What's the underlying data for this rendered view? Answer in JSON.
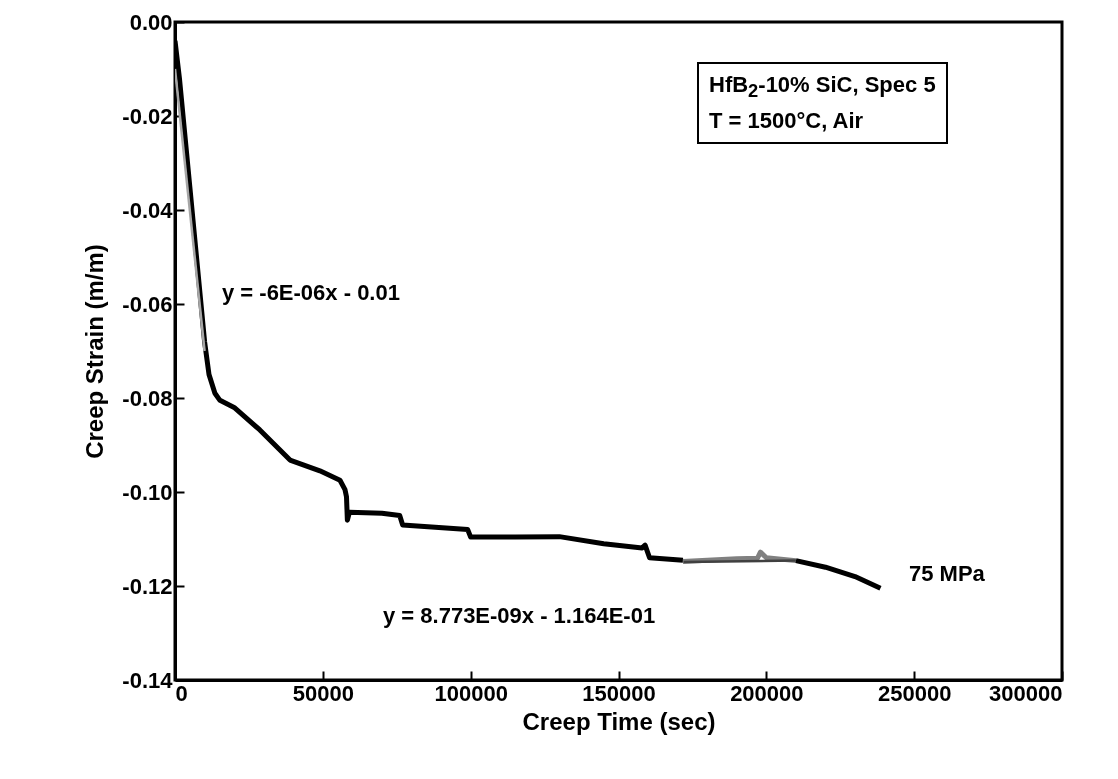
{
  "chart_data": {
    "type": "line",
    "xlabel": "Creep Time (sec)",
    "ylabel": "Creep Strain (m/m)",
    "xlim": [
      0,
      300000
    ],
    "xticks": [
      0,
      50000,
      100000,
      150000,
      200000,
      250000,
      300000
    ],
    "ylim": [
      -0.14,
      0.0
    ],
    "yticks": [
      {
        "value": -0.14,
        "label": "-0.14"
      },
      {
        "value": -0.12,
        "label": "-0.12"
      },
      {
        "value": -0.1,
        "label": "-0.10"
      },
      {
        "value": -0.08,
        "label": "-0.08"
      },
      {
        "value": -0.06,
        "label": "-0.06"
      },
      {
        "value": -0.04,
        "label": "-0.04"
      },
      {
        "value": -0.02,
        "label": "-0.02"
      },
      {
        "value": 0.0,
        "label": "0.00"
      }
    ],
    "grid": false,
    "series": [
      {
        "color": "#000000",
        "x": [
          0,
          1500,
          5000,
          10000,
          11500,
          13500,
          15200,
          20000,
          28700,
          38900,
          49000,
          55800,
          57500,
          58000,
          58300,
          59000,
          70000,
          76000,
          77000,
          99000,
          100000,
          115000,
          130000,
          145000,
          158000,
          159000,
          160500,
          171800
        ],
        "values": [
          -0.004,
          -0.012,
          -0.035,
          -0.068,
          -0.075,
          -0.079,
          -0.0805,
          -0.082,
          -0.0868,
          -0.0932,
          -0.0955,
          -0.0975,
          -0.0995,
          -0.101,
          -0.106,
          -0.1043,
          -0.1045,
          -0.105,
          -0.107,
          -0.108,
          -0.1096,
          -0.1096,
          -0.1095,
          -0.111,
          -0.1119,
          -0.1113,
          -0.114,
          -0.1145
        ]
      },
      {
        "color": "#808080",
        "x": [
          171800,
          180000,
          190000,
          197000,
          198000,
          200000,
          210000
        ],
        "values": [
          -0.1148,
          -0.1145,
          -0.1142,
          -0.1141,
          -0.1128,
          -0.114,
          -0.1146
        ]
      },
      {
        "color": "#000000",
        "x": [
          210000,
          220000,
          230000,
          238600
        ],
        "values": [
          -0.1146,
          -0.116,
          -0.118,
          -0.1205
        ]
      },
      {
        "color": "#a6a6a6",
        "x": [
          0,
          10000
        ],
        "values": [
          -0.01,
          -0.07
        ]
      },
      {
        "color": "#404040",
        "x": [
          172000,
          210000
        ],
        "values": [
          -0.1149,
          -0.1146
        ]
      }
    ],
    "annotations": [
      "HfB$_{2}$-10% SiC, Spec 5",
      "T = 1500°C, Air",
      "y = -6E-06x - 0.01",
      "y = 8.773E-09x - 1.164E-01",
      "75 MPa"
    ]
  }
}
